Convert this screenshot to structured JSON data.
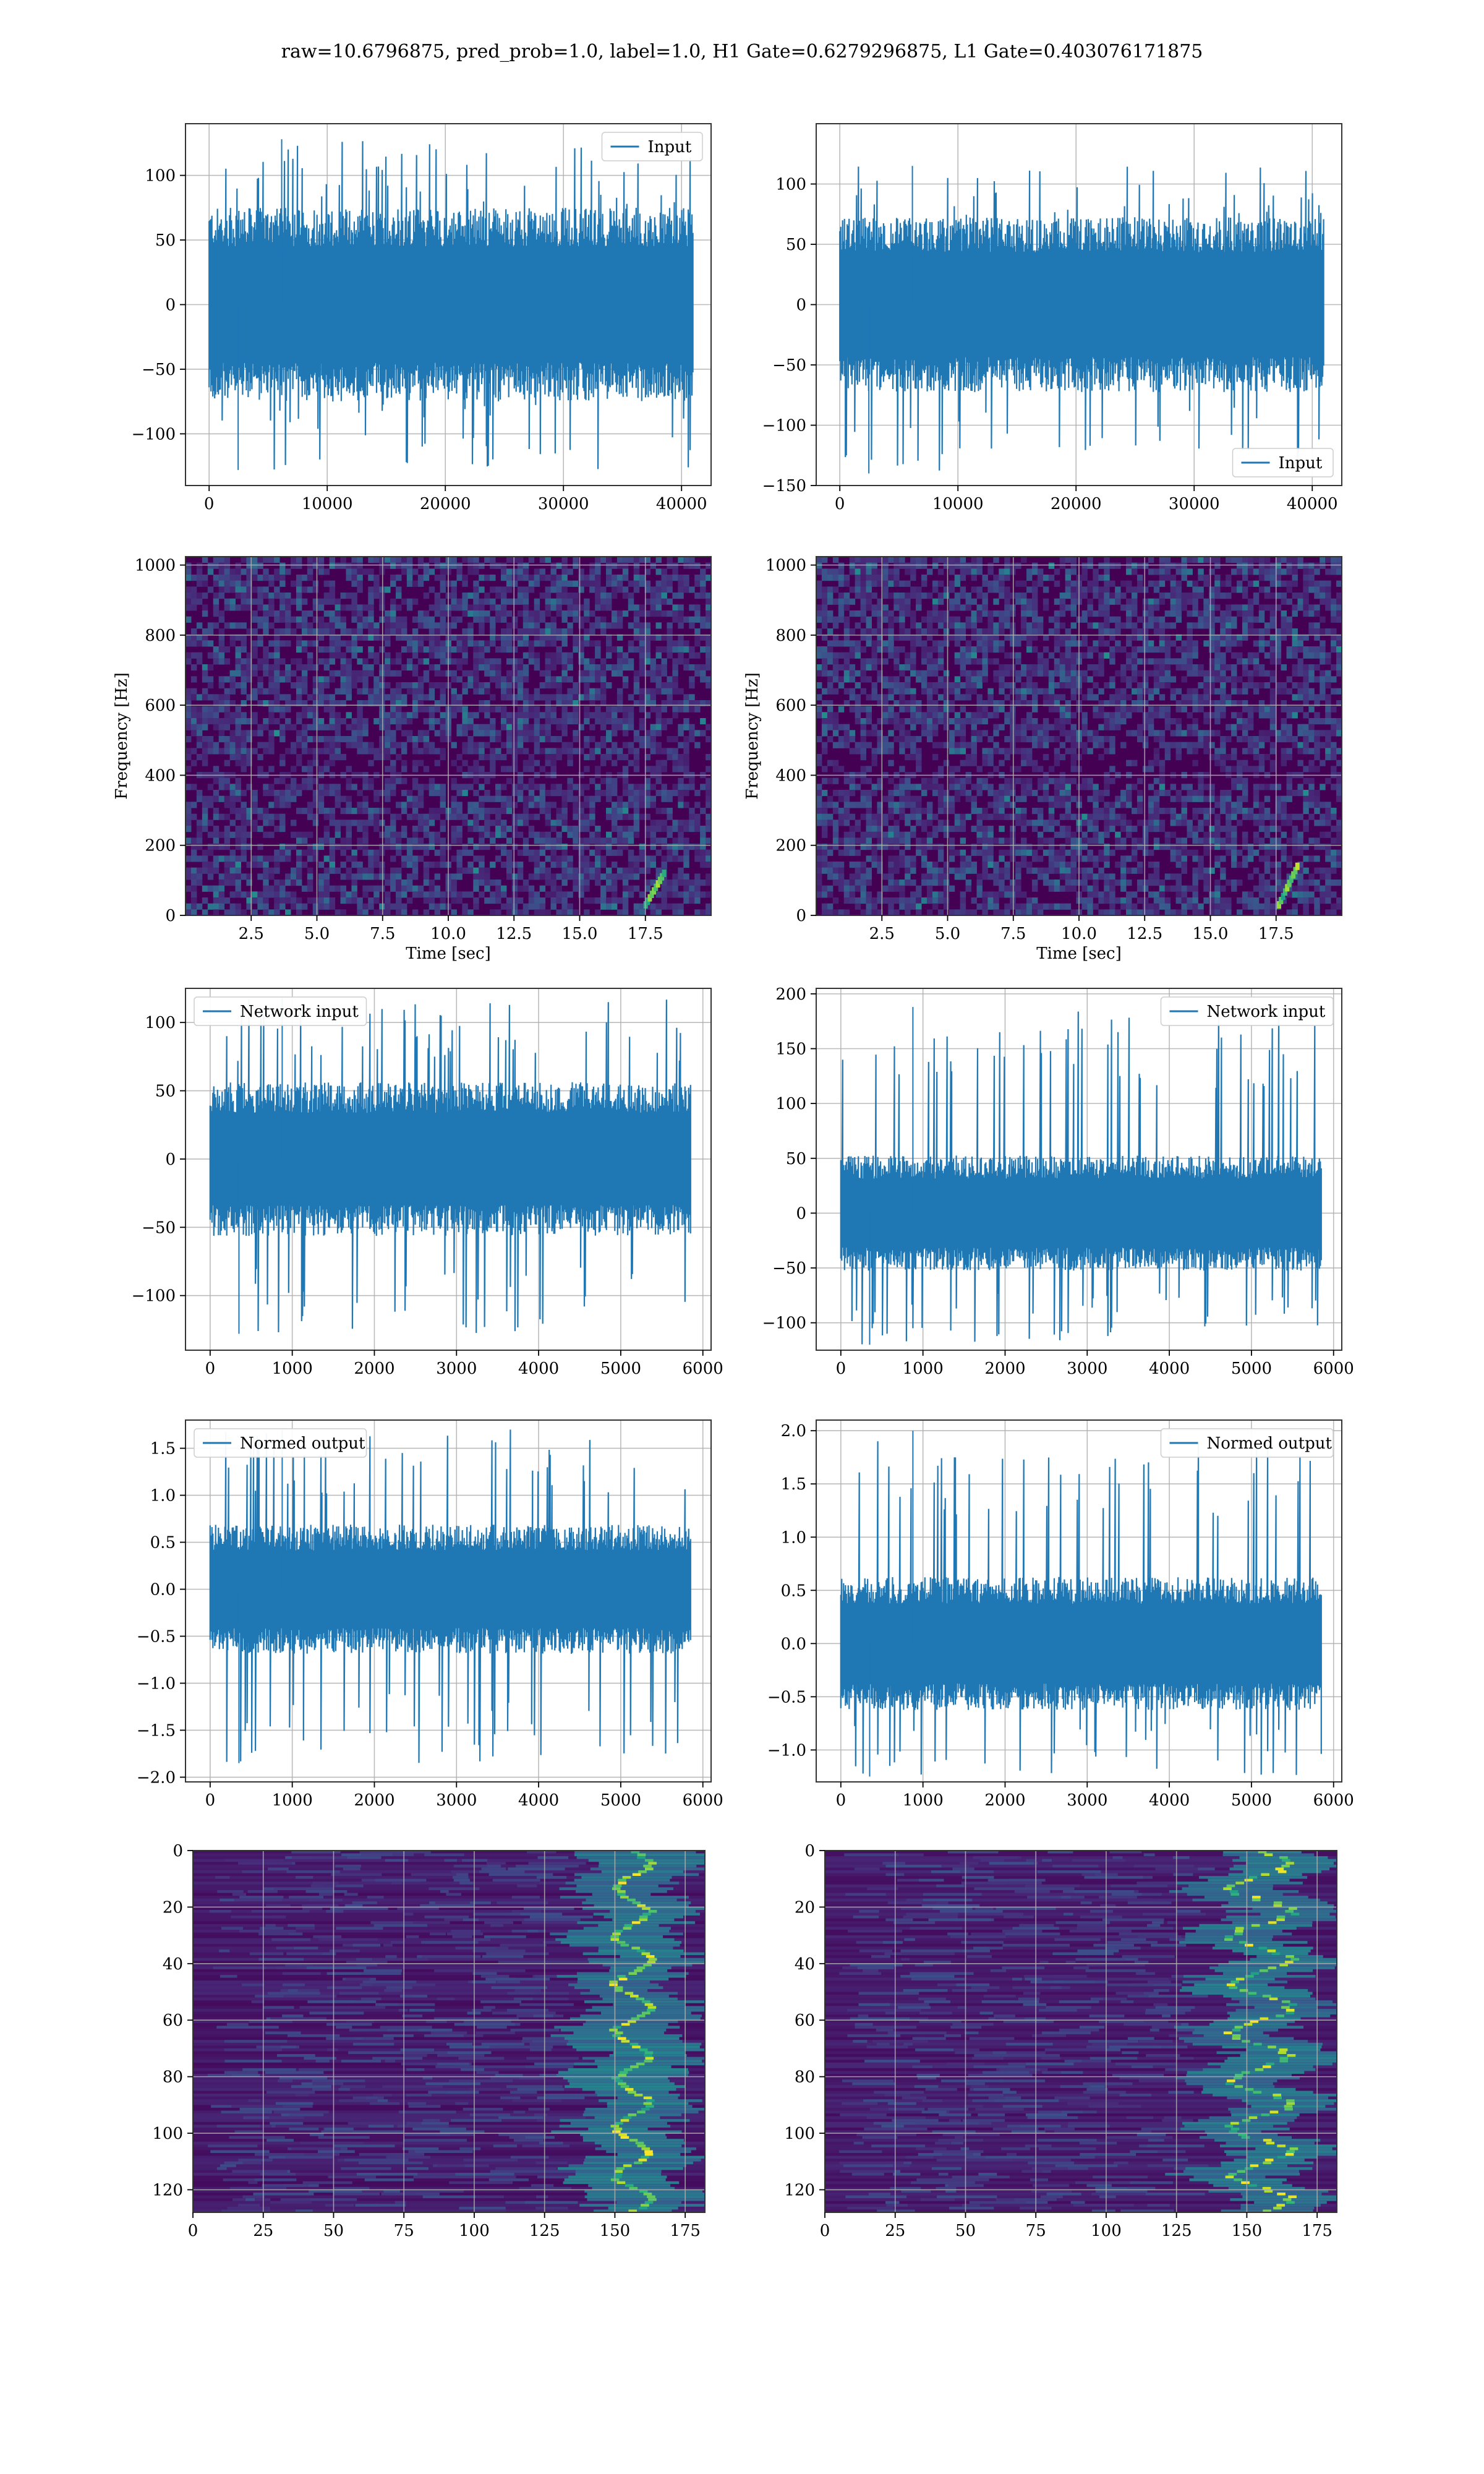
{
  "figure": {
    "suptitle": "raw=10.6796875, pred_prob=1.0, label=1.0, H1 Gate=0.6279296875, L1 Gate=0.403076171875"
  },
  "colors": {
    "line": "#1f77b4",
    "grid": "#b0b0b0",
    "viridis_low": "#440154",
    "viridis_high": "#fde725"
  },
  "chart_data": [
    {
      "id": "raw_h1",
      "type": "line",
      "title": "",
      "xlabel": "",
      "ylabel": "",
      "xlim": [
        -2000,
        42500
      ],
      "ylim": [
        -140,
        140
      ],
      "xticks": [
        0,
        10000,
        20000,
        30000,
        40000
      ],
      "yticks": [
        -100,
        -50,
        0,
        50,
        100
      ],
      "legend": "top-right",
      "grid": true,
      "series": [
        {
          "name": "Input",
          "n_samples": 40960,
          "x_range": [
            0,
            40960
          ],
          "envelope": [
            -60,
            60
          ],
          "extremes": [
            -128,
            128
          ]
        }
      ]
    },
    {
      "id": "raw_l1",
      "type": "line",
      "title": "",
      "xlabel": "",
      "ylabel": "",
      "xlim": [
        -2000,
        42500
      ],
      "ylim": [
        -150,
        150
      ],
      "xticks": [
        0,
        10000,
        20000,
        30000,
        40000
      ],
      "yticks": [
        -150,
        -100,
        -50,
        0,
        50,
        100
      ],
      "legend": "bottom-right",
      "grid": true,
      "series": [
        {
          "name": "Input",
          "n_samples": 40960,
          "x_range": [
            0,
            40960
          ],
          "envelope": [
            -58,
            58
          ],
          "extremes": [
            -140,
            115
          ]
        }
      ]
    },
    {
      "id": "spec_h1",
      "type": "heatmap",
      "title": "",
      "xlabel": "Time [sec]",
      "ylabel": "Frequency [Hz]",
      "xlim": [
        0,
        20
      ],
      "ylim": [
        0,
        1024
      ],
      "xticks": [
        2.5,
        5.0,
        7.5,
        10.0,
        12.5,
        15.0,
        17.5
      ],
      "yticks": [
        0,
        200,
        400,
        600,
        800,
        1000
      ],
      "grid": true,
      "colormap": "viridis",
      "features": [
        {
          "kind": "chirp",
          "time": [
            17.5,
            18.2
          ],
          "freq": [
            30,
            120
          ]
        }
      ]
    },
    {
      "id": "spec_l1",
      "type": "heatmap",
      "title": "",
      "xlabel": "Time [sec]",
      "ylabel": "Frequency [Hz]",
      "xlim": [
        0,
        20
      ],
      "ylim": [
        0,
        1024
      ],
      "xticks": [
        2.5,
        5.0,
        7.5,
        10.0,
        12.5,
        15.0,
        17.5
      ],
      "yticks": [
        0,
        200,
        400,
        600,
        800,
        1000
      ],
      "grid": true,
      "colormap": "viridis",
      "features": [
        {
          "kind": "chirp",
          "time": [
            17.6,
            18.3
          ],
          "freq": [
            30,
            140
          ]
        }
      ]
    },
    {
      "id": "net_h1",
      "type": "line",
      "title": "",
      "xlabel": "",
      "ylabel": "",
      "xlim": [
        -300,
        6100
      ],
      "ylim": [
        -140,
        125
      ],
      "xticks": [
        0,
        1000,
        2000,
        3000,
        4000,
        5000,
        6000
      ],
      "yticks": [
        -100,
        -50,
        0,
        50,
        100
      ],
      "legend": "top-left",
      "grid": true,
      "series": [
        {
          "name": "Network input",
          "n_samples": 5850,
          "x_range": [
            0,
            5850
          ],
          "envelope": [
            -45,
            45
          ],
          "extremes": [
            -128,
            118
          ]
        }
      ]
    },
    {
      "id": "net_l1",
      "type": "line",
      "title": "",
      "xlabel": "",
      "ylabel": "",
      "xlim": [
        -300,
        6100
      ],
      "ylim": [
        -125,
        205
      ],
      "xticks": [
        0,
        1000,
        2000,
        3000,
        4000,
        5000,
        6000
      ],
      "yticks": [
        -100,
        -50,
        0,
        50,
        100,
        150,
        200
      ],
      "legend": "top-right",
      "grid": true,
      "series": [
        {
          "name": "Network input",
          "n_samples": 5850,
          "x_range": [
            0,
            5850
          ],
          "envelope": [
            -42,
            42
          ],
          "extremes": [
            -120,
            188
          ]
        }
      ]
    },
    {
      "id": "norm_h1",
      "type": "line",
      "title": "",
      "xlabel": "",
      "ylabel": "",
      "xlim": [
        -300,
        6100
      ],
      "ylim": [
        -2.05,
        1.8
      ],
      "xticks": [
        0,
        1000,
        2000,
        3000,
        4000,
        5000,
        6000
      ],
      "yticks": [
        -2.0,
        -1.5,
        -1.0,
        -0.5,
        0.0,
        0.5,
        1.0,
        1.5
      ],
      "legend": "top-left",
      "grid": true,
      "series": [
        {
          "name": "Normed output",
          "n_samples": 5850,
          "x_range": [
            0,
            5850
          ],
          "envelope": [
            -0.55,
            0.55
          ],
          "extremes": [
            -1.85,
            1.7
          ]
        }
      ]
    },
    {
      "id": "norm_l1",
      "type": "line",
      "title": "",
      "xlabel": "",
      "ylabel": "",
      "xlim": [
        -300,
        6100
      ],
      "ylim": [
        -1.3,
        2.1
      ],
      "xticks": [
        0,
        1000,
        2000,
        3000,
        4000,
        5000,
        6000
      ],
      "yticks": [
        -1.0,
        -0.5,
        0.0,
        0.5,
        1.0,
        1.5,
        2.0
      ],
      "legend": "top-right",
      "grid": true,
      "series": [
        {
          "name": "Normed output",
          "n_samples": 5850,
          "x_range": [
            0,
            5850
          ],
          "envelope": [
            -0.5,
            0.5
          ],
          "extremes": [
            -1.25,
            2.0
          ]
        }
      ]
    },
    {
      "id": "feat_h1",
      "type": "heatmap",
      "title": "",
      "xlabel": "",
      "ylabel": "",
      "xlim": [
        0,
        182
      ],
      "ylim": [
        128,
        0
      ],
      "xticks": [
        0,
        25,
        50,
        75,
        100,
        125,
        150,
        175
      ],
      "yticks": [
        0,
        20,
        40,
        60,
        80,
        100,
        120
      ],
      "grid": true,
      "colormap": "viridis",
      "rows": 128,
      "features": [
        {
          "kind": "bright_band",
          "x": [
            148,
            165
          ]
        }
      ]
    },
    {
      "id": "feat_l1",
      "type": "heatmap",
      "title": "",
      "xlabel": "",
      "ylabel": "",
      "xlim": [
        0,
        182
      ],
      "ylim": [
        128,
        0
      ],
      "xticks": [
        0,
        25,
        50,
        75,
        100,
        125,
        150,
        175
      ],
      "yticks": [
        0,
        20,
        40,
        60,
        80,
        100,
        120
      ],
      "grid": true,
      "colormap": "viridis",
      "rows": 128,
      "features": [
        {
          "kind": "bright_band",
          "x": [
            140,
            170
          ]
        }
      ]
    }
  ]
}
